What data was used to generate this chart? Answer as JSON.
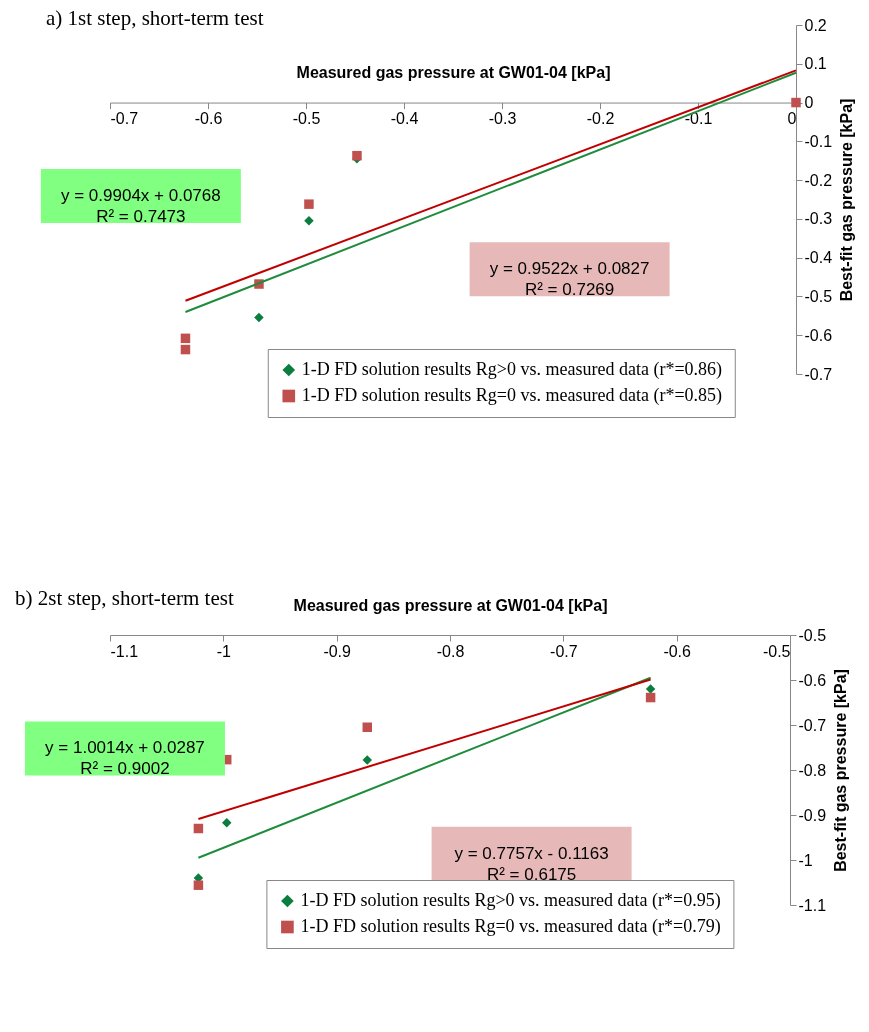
{
  "chart_data": [
    {
      "type": "scatter",
      "title": "a) 1st step, short-term test",
      "xlabel": "Measured gas pressure at GW01-04 [kPa]",
      "ylabel": "Best-fit gas pressure [kPa]",
      "xlim": [
        -0.7,
        0
      ],
      "xticks": [
        -0.7,
        -0.6,
        -0.5,
        -0.4,
        -0.3,
        -0.2,
        -0.1,
        0
      ],
      "ylim": [
        -0.7,
        0.2
      ],
      "yticks": [
        0.2,
        0.1,
        0,
        -0.1,
        -0.2,
        -0.3,
        -0.4,
        -0.5,
        -0.6,
        -0.7
      ],
      "legend": "bottom",
      "series": [
        {
          "name": "1-D FD solution results Rg>0 vs. measured data (r*=0.86)",
          "type": "scatter",
          "marker": "diamond",
          "color": "#0b7d3e",
          "x": [
            -0.548,
            -0.497,
            -0.448
          ],
          "values": [
            -0.554,
            -0.305,
            -0.145
          ]
        },
        {
          "name": "1-D FD solution results Rg=0 vs. measured data (r*=0.85)",
          "type": "scatter",
          "marker": "square",
          "color": "#c0504d",
          "x": [
            -0.623,
            -0.623,
            -0.548,
            -0.497,
            -0.448,
            0
          ],
          "values": [
            -0.608,
            -0.637,
            -0.468,
            -0.262,
            -0.137,
            0
          ]
        },
        {
          "type": "line",
          "color": "#1e8c3c",
          "x": [
            -0.623,
            0
          ],
          "values": [
            -0.54,
            0.077
          ]
        },
        {
          "type": "line",
          "color": "#c00000",
          "x": [
            -0.623,
            0
          ],
          "values": [
            -0.511,
            0.083
          ]
        }
      ],
      "annotations": [
        "y = 0.9904x + 0.0768\nR² = 0.7473",
        "y = 0.9522x + 0.0827\nR² = 0.7269"
      ]
    },
    {
      "type": "scatter",
      "title": "b) 2st step, short-term test",
      "xlabel": "Measured gas pressure at GW01-04 [kPa]",
      "ylabel": "Best-fit gas pressure [kPa]",
      "xlim": [
        -1.1,
        -0.5
      ],
      "xticks": [
        -1.1,
        -1,
        -0.9,
        -0.8,
        -0.7,
        -0.6,
        -0.5
      ],
      "ylim": [
        -1.1,
        -0.5
      ],
      "yticks": [
        -0.5,
        -0.6,
        -0.7,
        -0.8,
        -0.9,
        -1,
        -1.1
      ],
      "legend": "bottom",
      "series": [
        {
          "name": "1-D FD solution results Rg>0 vs. measured data (r*=0.95)",
          "type": "scatter",
          "marker": "diamond",
          "color": "#0b7d3e",
          "x": [
            -1.022,
            -0.997,
            -0.873,
            -0.623
          ],
          "values": [
            -1.04,
            -0.917,
            -0.778,
            -0.62
          ]
        },
        {
          "name": "1-D FD solution results Rg=0 vs. measured data (r*=0.79)",
          "type": "scatter",
          "marker": "square",
          "color": "#c0504d",
          "x": [
            -1.022,
            -1.022,
            -0.997,
            -0.873,
            -0.623
          ],
          "values": [
            -0.93,
            -1.056,
            -0.777,
            -0.705,
            -0.639
          ]
        },
        {
          "type": "line",
          "color": "#1e8c3c",
          "x": [
            -1.022,
            -0.623
          ],
          "values": [
            -0.995,
            -0.595
          ]
        },
        {
          "type": "line",
          "color": "#c00000",
          "x": [
            -1.022,
            -0.623
          ],
          "values": [
            -0.909,
            -0.599
          ]
        }
      ],
      "annotations": [
        "y = 1.0014x + 0.0287\nR² = 0.9002",
        "y = 0.7757x - 0.1163\nR² = 0.6175"
      ]
    }
  ]
}
